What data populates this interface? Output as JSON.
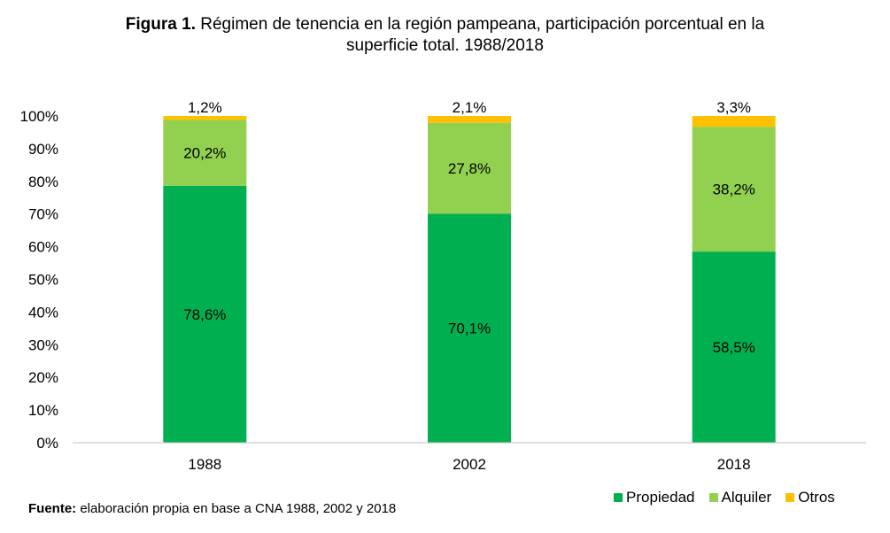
{
  "title": {
    "bold": "Figura 1.",
    "line1": " Régimen de tenencia en la región pampeana, participación porcentual en la",
    "line2": "superficie total. 1988/2018"
  },
  "source": {
    "bold": "Fuente:",
    "text": " elaboración propia en base a CNA 1988, 2002 y 2018"
  },
  "colors": {
    "Propiedad": "#00B050",
    "Alquiler": "#92D050",
    "Otros": "#FFC000",
    "axis": "#BFBFBF"
  },
  "chart_data": {
    "type": "bar",
    "stacked": true,
    "categories": [
      "1988",
      "2002",
      "2018"
    ],
    "series": [
      {
        "name": "Propiedad",
        "values": [
          78.6,
          70.1,
          58.5
        ],
        "labels": [
          "78,6%",
          "70,1%",
          "58,5%"
        ]
      },
      {
        "name": "Alquiler",
        "values": [
          20.2,
          27.8,
          38.2
        ],
        "labels": [
          "20,2%",
          "27,8%",
          "38,2%"
        ]
      },
      {
        "name": "Otros",
        "values": [
          1.2,
          2.1,
          3.3
        ],
        "labels": [
          "1,2%",
          "2,1%",
          "3,3%"
        ]
      }
    ],
    "ylim": [
      0,
      100
    ],
    "yticks": [
      "0%",
      "10%",
      "20%",
      "30%",
      "40%",
      "50%",
      "60%",
      "70%",
      "80%",
      "90%",
      "100%"
    ],
    "grid": false,
    "legend": "bottom-right"
  }
}
